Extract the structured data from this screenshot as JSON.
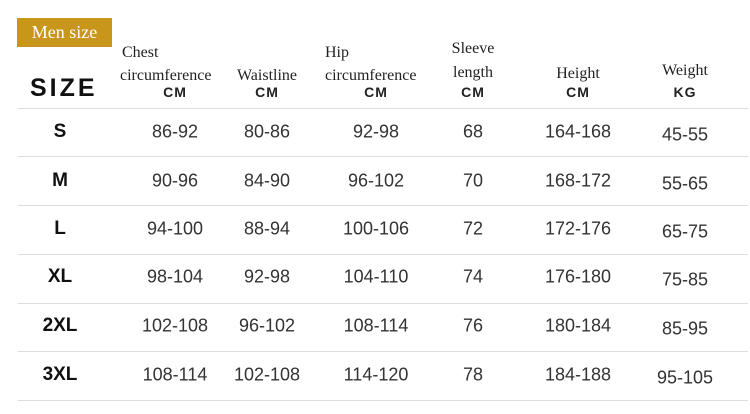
{
  "header": {
    "badge": "Men size",
    "size_label": "SIZE"
  },
  "table": {
    "columns": [
      {
        "lines": [
          "Chest",
          "circumference"
        ],
        "unit": "CM"
      },
      {
        "lines": [
          "Waistline"
        ],
        "unit": "CM"
      },
      {
        "lines": [
          "Hip",
          "circumference"
        ],
        "unit": "CM"
      },
      {
        "lines": [
          "Sleeve",
          "length"
        ],
        "unit": "CM"
      },
      {
        "lines": [
          "Height"
        ],
        "unit": "CM"
      },
      {
        "lines": [
          "Weight"
        ],
        "unit": "KG"
      }
    ],
    "rows": [
      [
        "S",
        "86-92",
        "80-86",
        "92-98",
        "68",
        "164-168",
        "45-55"
      ],
      [
        "M",
        "90-96",
        "84-90",
        "96-102",
        "70",
        "168-172",
        "55-65"
      ],
      [
        "L",
        "94-100",
        "88-94",
        "100-106",
        "72",
        "172-176",
        "65-75"
      ],
      [
        "XL",
        "98-104",
        "92-98",
        "104-110",
        "74",
        "176-180",
        "75-85"
      ],
      [
        "2XL",
        "102-108",
        "96-102",
        "108-114",
        "76",
        "180-184",
        "85-95"
      ],
      [
        "3XL",
        "108-114",
        "102-108",
        "114-120",
        "78",
        "184-188",
        "95-105"
      ]
    ]
  }
}
